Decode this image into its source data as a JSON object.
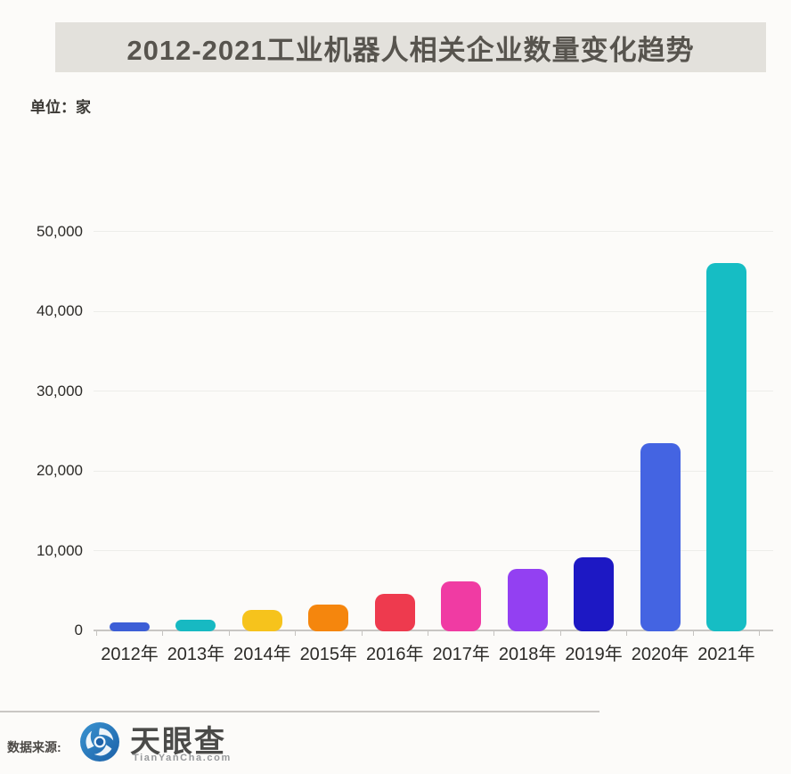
{
  "title": "2012-2021工业机器人相关企业数量变化趋势",
  "unit_label": "单位：家",
  "footer": {
    "source_label": "数据来源:",
    "brand_name": "天眼查",
    "brand_domain": "TianYanCha.com"
  },
  "colors": {
    "title_bar_bg": "#e3e1dc",
    "title_text": "#57544e",
    "axis_line": "#c8c6c3",
    "gridline": "#ededea",
    "logo_blue_light": "#3a93d0",
    "logo_blue_dark": "#1c61a8"
  },
  "chart_data": {
    "type": "bar",
    "title": "2012-2021工业机器人相关企业数量变化趋势",
    "unit": "家",
    "categories": [
      "2012年",
      "2013年",
      "2014年",
      "2015年",
      "2016年",
      "2017年",
      "2018年",
      "2019年",
      "2020年",
      "2021年"
    ],
    "values": [
      1100,
      1500,
      2700,
      3400,
      4700,
      6200,
      7800,
      9300,
      23500,
      46100
    ],
    "bar_colors": [
      "#3c5ed6",
      "#17b9c2",
      "#f6c31c",
      "#f5860d",
      "#ee3a4e",
      "#f03ba3",
      "#9340f2",
      "#1d18c4",
      "#4464e2",
      "#16bdc4"
    ],
    "xlabel": "",
    "ylabel": "",
    "ylim": [
      0,
      50000
    ],
    "y_ticks": [
      "0",
      "10,000",
      "20,000",
      "30,000",
      "40,000",
      "50,000"
    ],
    "grid": "horizontal",
    "legend": "none"
  }
}
